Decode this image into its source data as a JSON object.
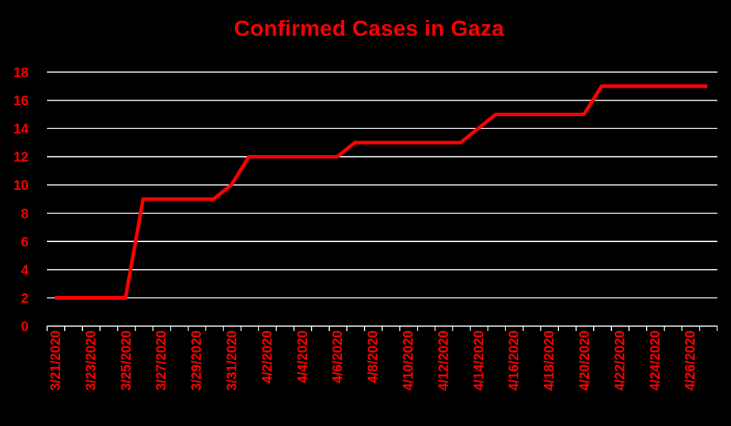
{
  "chart_data": {
    "type": "line",
    "title": "Confirmed Cases in Gaza",
    "xlabel": "",
    "ylabel": "",
    "ylim": [
      0,
      18
    ],
    "yticks": [
      0,
      2,
      4,
      6,
      8,
      10,
      12,
      14,
      16,
      18
    ],
    "xtick_labels": [
      "3/21/2020",
      "3/23/2020",
      "3/25/2020",
      "3/27/2020",
      "3/29/2020",
      "3/31/2020",
      "4/2/2020",
      "4/4/2020",
      "4/6/2020",
      "4/8/2020",
      "4/10/2020",
      "4/12/2020",
      "4/14/2020",
      "4/16/2020",
      "4/18/2020",
      "4/20/2020",
      "4/22/2020",
      "4/24/2020",
      "4/26/2020"
    ],
    "x": [
      "3/21/2020",
      "3/22/2020",
      "3/23/2020",
      "3/24/2020",
      "3/25/2020",
      "3/26/2020",
      "3/27/2020",
      "3/28/2020",
      "3/29/2020",
      "3/30/2020",
      "3/31/2020",
      "4/1/2020",
      "4/2/2020",
      "4/3/2020",
      "4/4/2020",
      "4/5/2020",
      "4/6/2020",
      "4/7/2020",
      "4/8/2020",
      "4/9/2020",
      "4/10/2020",
      "4/11/2020",
      "4/12/2020",
      "4/13/2020",
      "4/14/2020",
      "4/15/2020",
      "4/16/2020",
      "4/17/2020",
      "4/18/2020",
      "4/19/2020",
      "4/20/2020",
      "4/21/2020",
      "4/22/2020",
      "4/23/2020",
      "4/24/2020",
      "4/25/2020",
      "4/26/2020",
      "4/27/2020"
    ],
    "values": [
      2,
      2,
      2,
      2,
      2,
      9,
      9,
      9,
      9,
      9,
      10,
      12,
      12,
      12,
      12,
      12,
      12,
      13,
      13,
      13,
      13,
      13,
      13,
      13,
      14,
      15,
      15,
      15,
      15,
      15,
      15,
      17,
      17,
      17,
      17,
      17,
      17,
      17
    ],
    "grid": true,
    "legend": "none",
    "colors": {
      "background": "#000000",
      "line": "#ff0000",
      "text": "#ff0000",
      "grid": "#ffffff"
    }
  }
}
